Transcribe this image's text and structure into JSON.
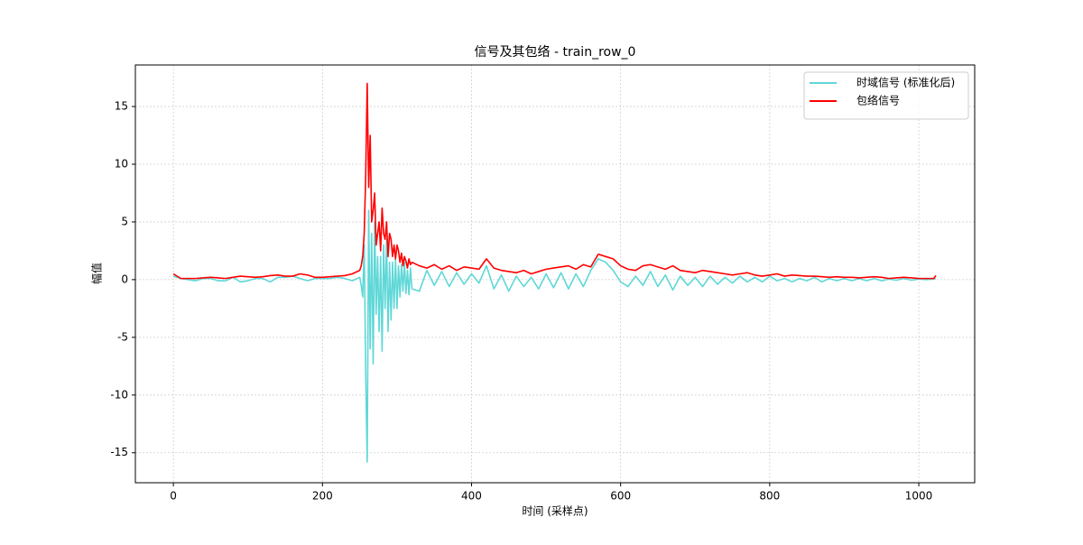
{
  "chart_data": {
    "type": "line",
    "title": "信号及其包络 - train_row_0",
    "x_label": "时间 (采样点)",
    "y_label": "幅值",
    "xlim": [
      -51,
      1075
    ],
    "ylim": [
      -17.6,
      18.6
    ],
    "xticks": [
      0,
      200,
      400,
      600,
      800,
      1000
    ],
    "yticks": [
      -15,
      -10,
      -5,
      0,
      5,
      10,
      15
    ],
    "grid": true,
    "legend": "upper right",
    "x": [
      0,
      10,
      20,
      30,
      40,
      50,
      60,
      70,
      80,
      90,
      100,
      110,
      120,
      130,
      140,
      150,
      160,
      170,
      180,
      190,
      200,
      210,
      220,
      230,
      240,
      250,
      252,
      254,
      256,
      258,
      260,
      262,
      264,
      266,
      268,
      270,
      272,
      274,
      276,
      278,
      280,
      282,
      284,
      286,
      288,
      290,
      292,
      294,
      296,
      298,
      300,
      302,
      304,
      306,
      308,
      310,
      312,
      314,
      316,
      318,
      320,
      330,
      340,
      350,
      360,
      370,
      380,
      390,
      400,
      410,
      420,
      430,
      440,
      450,
      460,
      470,
      480,
      490,
      500,
      510,
      520,
      530,
      540,
      550,
      560,
      570,
      580,
      590,
      600,
      610,
      620,
      630,
      640,
      650,
      660,
      670,
      680,
      690,
      700,
      710,
      720,
      730,
      740,
      750,
      760,
      770,
      780,
      790,
      800,
      810,
      820,
      830,
      840,
      850,
      860,
      870,
      880,
      890,
      900,
      910,
      920,
      930,
      940,
      950,
      960,
      970,
      980,
      990,
      1000,
      1010,
      1020,
      1023
    ],
    "series": [
      {
        "name": "时域信号 (标准化后)",
        "color": "#5fd7d7",
        "values": [
          0.3,
          0.1,
          0,
          -0.1,
          0.1,
          0.1,
          -0.1,
          -0.1,
          0.2,
          -0.2,
          -0.1,
          0.1,
          0.1,
          -0.2,
          0.2,
          0.2,
          0.3,
          0.1,
          -0.1,
          0.1,
          0.1,
          0.1,
          0.2,
          0.1,
          -0.1,
          0.2,
          -0.5,
          -1.5,
          3,
          -8,
          -15.8,
          6,
          -6,
          4,
          -7.3,
          5,
          -3,
          2,
          -4.5,
          2,
          -6.2,
          3,
          -2.5,
          3.5,
          -4.5,
          1.5,
          -3.5,
          1.5,
          -2.5,
          1.8,
          -2.5,
          1.2,
          -1.5,
          1.3,
          -1,
          1.5,
          -1.2,
          0.8,
          -1.3,
          1,
          -0.8,
          -1,
          0.8,
          -0.5,
          0.7,
          -0.6,
          0.6,
          -0.4,
          0.5,
          -0.3,
          1.2,
          -0.8,
          0.4,
          -1,
          0.3,
          -0.6,
          0.2,
          -0.8,
          0.5,
          -0.7,
          0.6,
          -0.8,
          0.5,
          -0.6,
          0.8,
          1.8,
          1.5,
          0.8,
          -0.2,
          -0.6,
          0.3,
          -0.5,
          0.7,
          -0.6,
          0.4,
          -0.9,
          0.3,
          -0.5,
          0.2,
          -0.6,
          0.3,
          -0.4,
          0.2,
          -0.3,
          0.3,
          -0.2,
          0.2,
          -0.2,
          0.3,
          -0.1,
          0.1,
          -0.2,
          0.1,
          -0.1,
          0.2,
          -0.2,
          0.1,
          -0.1,
          0.1,
          -0.1,
          0.1,
          -0.1,
          0.1,
          -0.1,
          0.05,
          -0.05,
          0.1,
          -0.05,
          0.05,
          0,
          0.05,
          0.1
        ]
      },
      {
        "name": "包络信号",
        "color": "#ff0000",
        "values": [
          0.5,
          0.1,
          0.1,
          0.1,
          0.15,
          0.2,
          0.15,
          0.1,
          0.2,
          0.3,
          0.25,
          0.2,
          0.25,
          0.35,
          0.4,
          0.3,
          0.3,
          0.5,
          0.4,
          0.2,
          0.2,
          0.25,
          0.3,
          0.35,
          0.5,
          0.8,
          1.2,
          2,
          4,
          9,
          17,
          8,
          12.5,
          5,
          6,
          7.5,
          3,
          4,
          5,
          2.5,
          6.2,
          4,
          3.5,
          5,
          2,
          4,
          3.5,
          2,
          3,
          1.8,
          3,
          2.5,
          1.5,
          2.3,
          1.2,
          2,
          1.6,
          1,
          1.8,
          1.3,
          1.5,
          1.2,
          1,
          1.3,
          0.9,
          1.2,
          0.8,
          1.1,
          1,
          0.9,
          1.8,
          1,
          0.8,
          0.7,
          0.6,
          0.8,
          0.5,
          0.7,
          0.9,
          1,
          1.1,
          1.2,
          0.9,
          1.3,
          1.1,
          2.2,
          2,
          1.8,
          1.2,
          0.9,
          0.8,
          1.2,
          1.3,
          1.1,
          0.9,
          1.2,
          0.8,
          0.7,
          0.6,
          0.8,
          0.7,
          0.6,
          0.5,
          0.4,
          0.5,
          0.6,
          0.4,
          0.3,
          0.4,
          0.5,
          0.3,
          0.4,
          0.35,
          0.3,
          0.3,
          0.25,
          0.2,
          0.25,
          0.2,
          0.2,
          0.15,
          0.2,
          0.25,
          0.2,
          0.1,
          0.15,
          0.2,
          0.15,
          0.1,
          0.1,
          0.1,
          0.35
        ]
      }
    ]
  }
}
